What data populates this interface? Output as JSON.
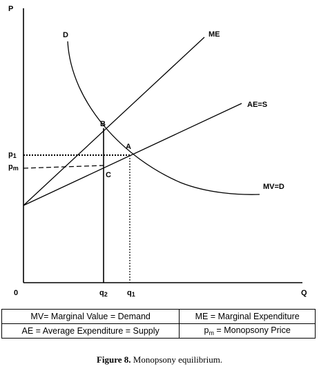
{
  "axes": {
    "y_label": "P",
    "x_label": "Q",
    "origin_label": "0"
  },
  "curves": {
    "demand_top": "D",
    "me": "ME",
    "ae": "AE=S",
    "mv": "MV=D"
  },
  "points": {
    "a": "A",
    "b": "B",
    "c": "C"
  },
  "ticks": {
    "p1": "p1",
    "pm": "pm",
    "q2": "q2",
    "q1": "q1"
  },
  "legend": {
    "mv": "MV= Marginal Value = Demand",
    "me": "ME = Marginal Expenditure",
    "ae": "AE = Average Expenditure = Supply",
    "pm_symbol": "p",
    "pm_sub": "m",
    "pm_text": " = Monopsony Price"
  },
  "caption": {
    "figure": "Figure 8.",
    "text": "Monopsony equilibrium."
  }
}
